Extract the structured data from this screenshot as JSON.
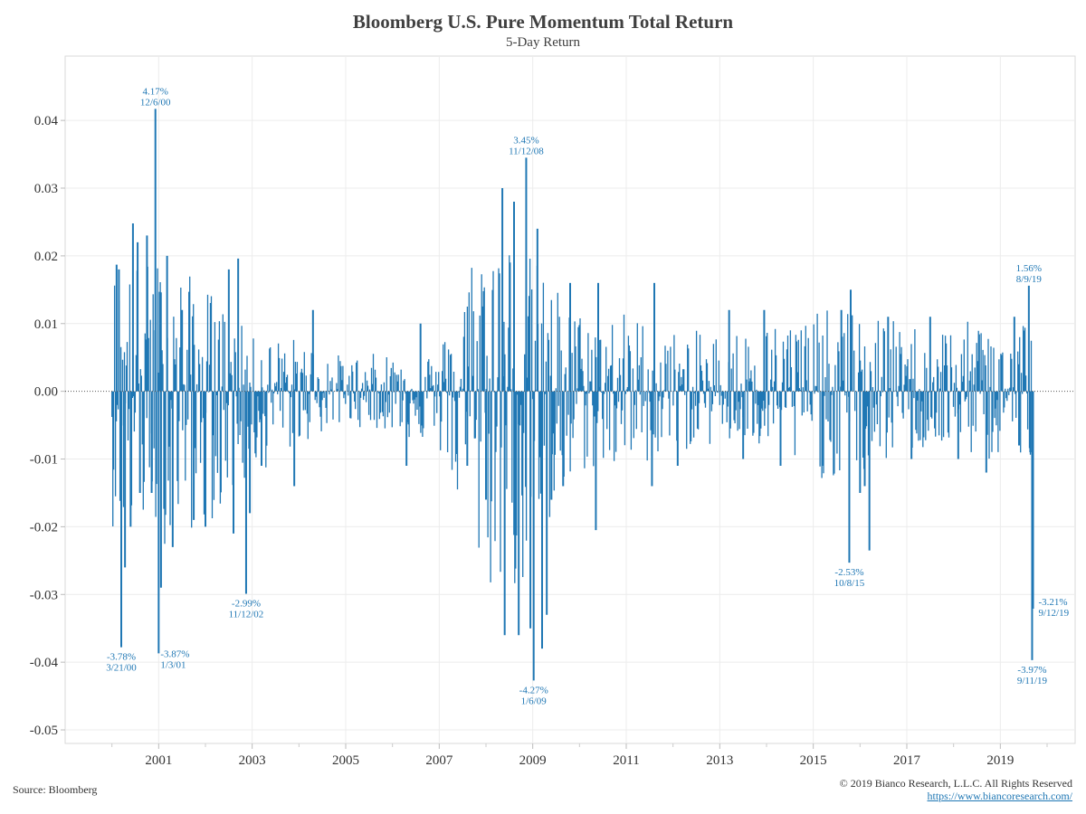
{
  "chart_data": {
    "type": "bar",
    "title": "Bloomberg U.S. Pure Momentum Total Return",
    "subtitle": "5-Day Return",
    "xlabel": "",
    "ylabel": "",
    "ylim": [
      -0.052,
      0.0495
    ],
    "xlim": [
      1999.0,
      2020.6
    ],
    "x_ticks": [
      "2001",
      "2003",
      "2005",
      "2007",
      "2009",
      "2011",
      "2013",
      "2015",
      "2017",
      "2019"
    ],
    "y_ticks": [
      "0.04",
      "0.03",
      "0.02",
      "0.01",
      "0.00",
      "-0.01",
      "-0.02",
      "-0.03",
      "-0.04",
      "-0.05"
    ],
    "grid": true,
    "zero_line": "dotted",
    "series_color": "#1f77b4",
    "envelope": [
      {
        "year": 2000.0,
        "hi": 0.0185,
        "lo": -0.02
      },
      {
        "year": 2001.0,
        "hi": 0.02,
        "lo": -0.023
      },
      {
        "year": 2002.0,
        "hi": 0.016,
        "lo": -0.02
      },
      {
        "year": 2003.0,
        "hi": 0.008,
        "lo": -0.013
      },
      {
        "year": 2004.0,
        "hi": 0.008,
        "lo": -0.008
      },
      {
        "year": 2005.0,
        "hi": 0.005,
        "lo": -0.005
      },
      {
        "year": 2006.0,
        "hi": 0.006,
        "lo": -0.006
      },
      {
        "year": 2007.0,
        "hi": 0.006,
        "lo": -0.009
      },
      {
        "year": 2008.0,
        "hi": 0.028,
        "lo": -0.03
      },
      {
        "year": 2009.0,
        "hi": 0.02,
        "lo": -0.03
      },
      {
        "year": 2010.0,
        "hi": 0.012,
        "lo": -0.012
      },
      {
        "year": 2011.0,
        "hi": 0.012,
        "lo": -0.012
      },
      {
        "year": 2012.0,
        "hi": 0.009,
        "lo": -0.009
      },
      {
        "year": 2013.0,
        "hi": 0.009,
        "lo": -0.008
      },
      {
        "year": 2014.0,
        "hi": 0.01,
        "lo": -0.009
      },
      {
        "year": 2015.0,
        "hi": 0.012,
        "lo": -0.013
      },
      {
        "year": 2016.0,
        "hi": 0.012,
        "lo": -0.013
      },
      {
        "year": 2017.0,
        "hi": 0.01,
        "lo": -0.009
      },
      {
        "year": 2018.0,
        "hi": 0.01,
        "lo": -0.009
      },
      {
        "year": 2019.0,
        "hi": 0.011,
        "lo": -0.011
      },
      {
        "year": 2019.7,
        "hi": 0.012,
        "lo": -0.012
      }
    ],
    "spikes": [
      {
        "x": 2000.1,
        "y": 0.0187
      },
      {
        "x": 2000.15,
        "y": 0.018
      },
      {
        "x": 2000.2,
        "y": -0.0378
      },
      {
        "x": 2000.28,
        "y": -0.026
      },
      {
        "x": 2000.4,
        "y": -0.02
      },
      {
        "x": 2000.45,
        "y": 0.0248
      },
      {
        "x": 2000.55,
        "y": 0.022
      },
      {
        "x": 2000.6,
        "y": -0.015
      },
      {
        "x": 2000.75,
        "y": 0.023
      },
      {
        "x": 2000.85,
        "y": -0.015
      },
      {
        "x": 2000.93,
        "y": 0.0417
      },
      {
        "x": 2001.0,
        "y": -0.0387
      },
      {
        "x": 2001.05,
        "y": -0.029
      },
      {
        "x": 2001.18,
        "y": 0.02
      },
      {
        "x": 2001.3,
        "y": -0.023
      },
      {
        "x": 2001.5,
        "y": 0.012
      },
      {
        "x": 2001.75,
        "y": -0.019
      },
      {
        "x": 2002.0,
        "y": -0.02
      },
      {
        "x": 2002.5,
        "y": 0.018
      },
      {
        "x": 2002.6,
        "y": -0.021
      },
      {
        "x": 2002.7,
        "y": 0.0196
      },
      {
        "x": 2002.87,
        "y": -0.0299
      },
      {
        "x": 2002.95,
        "y": -0.018
      },
      {
        "x": 2003.2,
        "y": -0.011
      },
      {
        "x": 2003.9,
        "y": -0.014
      },
      {
        "x": 2004.3,
        "y": 0.012
      },
      {
        "x": 2006.3,
        "y": -0.011
      },
      {
        "x": 2006.6,
        "y": 0.01
      },
      {
        "x": 2007.6,
        "y": -0.011
      },
      {
        "x": 2008.0,
        "y": -0.016
      },
      {
        "x": 2008.35,
        "y": 0.03
      },
      {
        "x": 2008.4,
        "y": -0.036
      },
      {
        "x": 2008.6,
        "y": 0.028
      },
      {
        "x": 2008.7,
        "y": -0.036
      },
      {
        "x": 2008.86,
        "y": 0.0345
      },
      {
        "x": 2008.95,
        "y": -0.035
      },
      {
        "x": 2009.02,
        "y": -0.0427
      },
      {
        "x": 2009.1,
        "y": 0.024
      },
      {
        "x": 2009.2,
        "y": -0.038
      },
      {
        "x": 2009.3,
        "y": -0.033
      },
      {
        "x": 2009.4,
        "y": -0.016
      },
      {
        "x": 2009.65,
        "y": -0.014
      },
      {
        "x": 2009.8,
        "y": 0.016
      },
      {
        "x": 2010.35,
        "y": -0.0205
      },
      {
        "x": 2010.4,
        "y": 0.016
      },
      {
        "x": 2011.6,
        "y": 0.016
      },
      {
        "x": 2011.55,
        "y": -0.014
      },
      {
        "x": 2012.1,
        "y": -0.011
      },
      {
        "x": 2013.2,
        "y": 0.012
      },
      {
        "x": 2013.5,
        "y": -0.01
      },
      {
        "x": 2013.95,
        "y": 0.012
      },
      {
        "x": 2014.3,
        "y": -0.011
      },
      {
        "x": 2015.2,
        "y": -0.011
      },
      {
        "x": 2015.6,
        "y": 0.012
      },
      {
        "x": 2015.77,
        "y": -0.0253
      },
      {
        "x": 2015.8,
        "y": 0.015
      },
      {
        "x": 2016.0,
        "y": -0.015
      },
      {
        "x": 2016.1,
        "y": -0.014
      },
      {
        "x": 2016.2,
        "y": -0.0235
      },
      {
        "x": 2016.6,
        "y": 0.011
      },
      {
        "x": 2017.1,
        "y": -0.01
      },
      {
        "x": 2017.5,
        "y": 0.011
      },
      {
        "x": 2018.1,
        "y": -0.01
      },
      {
        "x": 2018.7,
        "y": -0.012
      },
      {
        "x": 2019.3,
        "y": 0.011
      },
      {
        "x": 2019.4,
        "y": -0.008
      },
      {
        "x": 2019.61,
        "y": 0.0156
      },
      {
        "x": 2019.64,
        "y": -0.009
      },
      {
        "x": 2019.68,
        "y": -0.0397
      },
      {
        "x": 2019.7,
        "y": -0.0321
      }
    ],
    "annotations": [
      {
        "pct": "4.17%",
        "date": "12/6/00",
        "x": 2000.93,
        "y": 0.0417,
        "side": "above"
      },
      {
        "pct": "3.45%",
        "date": "11/12/08",
        "x": 2008.86,
        "y": 0.0345,
        "side": "above"
      },
      {
        "pct": "1.56%",
        "date": "8/9/19",
        "x": 2019.61,
        "y": 0.0156,
        "side": "above"
      },
      {
        "pct": "-3.78%",
        "date": "3/21/00",
        "x": 2000.2,
        "y": -0.0378,
        "side": "below"
      },
      {
        "pct": "-3.87%",
        "date": "1/3/01",
        "x": 2001.0,
        "y": -0.0387,
        "side": "below-right"
      },
      {
        "pct": "-2.99%",
        "date": "11/12/02",
        "x": 2002.87,
        "y": -0.0299,
        "side": "below"
      },
      {
        "pct": "-4.27%",
        "date": "1/6/09",
        "x": 2009.02,
        "y": -0.0427,
        "side": "below"
      },
      {
        "pct": "-2.53%",
        "date": "10/8/15",
        "x": 2015.77,
        "y": -0.0253,
        "side": "below"
      },
      {
        "pct": "-3.97%",
        "date": "9/11/19",
        "x": 2019.68,
        "y": -0.0397,
        "side": "below"
      },
      {
        "pct": "-3.21%",
        "date": "9/12/19",
        "x": 2019.7,
        "y": -0.0321,
        "side": "right"
      }
    ]
  },
  "footer": {
    "source": "Source: Bloomberg",
    "copyright": "© 2019 Bianco Research, L.L.C. All Rights Reserved",
    "url": "https://www.biancoresearch.com/"
  }
}
